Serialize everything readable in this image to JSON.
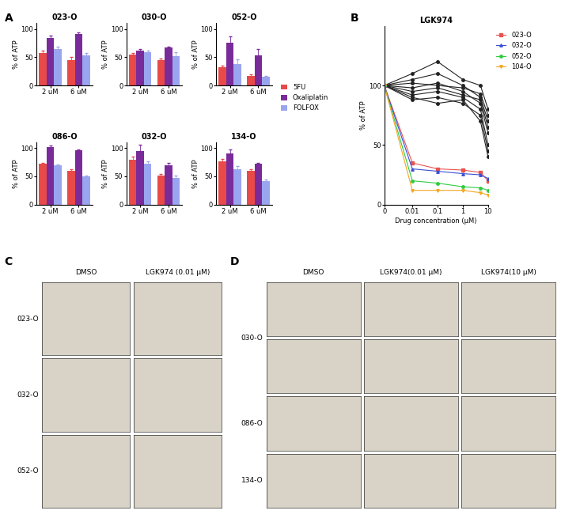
{
  "chart_data": [
    {
      "type": "bar",
      "title": "023-O",
      "y_label": "% of ATP",
      "categories": [
        "2 uM",
        "6 uM"
      ],
      "ylim": [
        0,
        110
      ],
      "yticks": [
        0,
        50,
        100
      ],
      "series": [
        {
          "name": "5FU",
          "color": "#e84a4a",
          "values": [
            57,
            45
          ],
          "errors": [
            5,
            6
          ]
        },
        {
          "name": "Oxaliplatin",
          "color": "#7a2b9a",
          "values": [
            84,
            91
          ],
          "errors": [
            4,
            3
          ]
        },
        {
          "name": "FOLFOX",
          "color": "#9aa5ef",
          "values": [
            65,
            53
          ],
          "errors": [
            4,
            4
          ]
        }
      ]
    },
    {
      "type": "bar",
      "title": "030-O",
      "y_label": "% of ATP",
      "categories": [
        "2 uM",
        "6 uM"
      ],
      "ylim": [
        0,
        110
      ],
      "yticks": [
        0,
        50,
        100
      ],
      "series": [
        {
          "name": "5FU",
          "color": "#e84a4a",
          "values": [
            55,
            45
          ],
          "errors": [
            3,
            2
          ]
        },
        {
          "name": "Oxaliplatin",
          "color": "#7a2b9a",
          "values": [
            61,
            67
          ],
          "errors": [
            4,
            2
          ]
        },
        {
          "name": "FOLFOX",
          "color": "#9aa5ef",
          "values": [
            59,
            52
          ],
          "errors": [
            3,
            7
          ]
        }
      ]
    },
    {
      "type": "bar",
      "title": "052-O",
      "y_label": "% of ATP",
      "categories": [
        "2 uM",
        "6 uM"
      ],
      "ylim": [
        0,
        110
      ],
      "yticks": [
        0,
        50,
        100
      ],
      "legend": "center left",
      "series": [
        {
          "name": "5FU",
          "color": "#e84a4a",
          "values": [
            32,
            17
          ],
          "errors": [
            3,
            3
          ]
        },
        {
          "name": "Oxaliplatin",
          "color": "#7a2b9a",
          "values": [
            75,
            53
          ],
          "errors": [
            12,
            11
          ]
        },
        {
          "name": "FOLFOX",
          "color": "#9aa5ef",
          "values": [
            38,
            15
          ],
          "errors": [
            8,
            2
          ]
        }
      ]
    },
    {
      "type": "bar",
      "title": "086-O",
      "y_label": "% of ATP",
      "categories": [
        "2 uM",
        "6 uM"
      ],
      "ylim": [
        0,
        110
      ],
      "yticks": [
        0,
        50,
        100
      ],
      "series": [
        {
          "name": "5FU",
          "color": "#e84a4a",
          "values": [
            72,
            60
          ],
          "errors": [
            2,
            2
          ]
        },
        {
          "name": "Oxaliplatin",
          "color": "#7a2b9a",
          "values": [
            102,
            96
          ],
          "errors": [
            2,
            2
          ]
        },
        {
          "name": "FOLFOX",
          "color": "#9aa5ef",
          "values": [
            69,
            50
          ],
          "errors": [
            2,
            2
          ]
        }
      ]
    },
    {
      "type": "bar",
      "title": "032-O",
      "y_label": "% of ATP",
      "categories": [
        "2 uM",
        "6 uM"
      ],
      "ylim": [
        0,
        110
      ],
      "yticks": [
        0,
        50,
        100
      ],
      "series": [
        {
          "name": "5FU",
          "color": "#e84a4a",
          "values": [
            80,
            52
          ],
          "errors": [
            5,
            2
          ]
        },
        {
          "name": "Oxaliplatin",
          "color": "#7a2b9a",
          "values": [
            95,
            70
          ],
          "errors": [
            11,
            4
          ]
        },
        {
          "name": "FOLFOX",
          "color": "#9aa5ef",
          "values": [
            72,
            47
          ],
          "errors": [
            4,
            4
          ]
        }
      ]
    },
    {
      "type": "bar",
      "title": "134-O",
      "y_label": "% of ATP",
      "categories": [
        "2 uM",
        "6 uM"
      ],
      "ylim": [
        0,
        110
      ],
      "yticks": [
        0,
        50,
        100
      ],
      "series": [
        {
          "name": "5FU",
          "color": "#e84a4a",
          "values": [
            77,
            60
          ],
          "errors": [
            4,
            3
          ]
        },
        {
          "name": "Oxaliplatin",
          "color": "#7a2b9a",
          "values": [
            90,
            72
          ],
          "errors": [
            7,
            2
          ]
        },
        {
          "name": "FOLFOX",
          "color": "#9aa5ef",
          "values": [
            62,
            42
          ],
          "errors": [
            6,
            3
          ]
        }
      ]
    },
    {
      "type": "line",
      "title": "LGK974",
      "x_label": "Drug concentration (μM)",
      "y_label": "% of ATP",
      "x": [
        0,
        0.01,
        0.1,
        1,
        5,
        10
      ],
      "log": "x",
      "xlim": [
        0,
        10
      ],
      "xticks": [
        0,
        0.01,
        0.1,
        1,
        10
      ],
      "ylim": [
        0,
        150
      ],
      "yticks": [
        0,
        50,
        100
      ],
      "legend": "upper left",
      "series": [
        {
          "color": "#222222",
          "marker": "o",
          "values": [
            100,
            98,
            102,
            95,
            85,
            60
          ]
        },
        {
          "color": "#222222",
          "marker": "o",
          "values": [
            100,
            105,
            110,
            100,
            90,
            70
          ]
        },
        {
          "color": "#222222",
          "marker": "o",
          "values": [
            100,
            92,
            95,
            90,
            80,
            50
          ]
        },
        {
          "color": "#222222",
          "marker": "o",
          "values": [
            100,
            88,
            90,
            85,
            75,
            45
          ]
        },
        {
          "color": "#222222",
          "marker": "o",
          "values": [
            100,
            110,
            120,
            105,
            100,
            80
          ]
        },
        {
          "color": "#222222",
          "marker": "o",
          "values": [
            100,
            95,
            98,
            92,
            88,
            65
          ]
        },
        {
          "color": "#222222",
          "marker": "o",
          "values": [
            100,
            102,
            100,
            98,
            93,
            75
          ]
        },
        {
          "color": "#222222",
          "marker": "o",
          "values": [
            100,
            90,
            85,
            88,
            70,
            40
          ]
        },
        {
          "name": "023-O",
          "color": "#e8534f",
          "marker": "square",
          "values": [
            100,
            35,
            30,
            29,
            27,
            20
          ]
        },
        {
          "name": "032-O",
          "color": "#3a4fd6",
          "marker": "triangle",
          "values": [
            100,
            30,
            28,
            26,
            25,
            22
          ]
        },
        {
          "name": "052-O",
          "color": "#2ecc40",
          "marker": "circle",
          "values": [
            100,
            20,
            18,
            15,
            14,
            12
          ]
        },
        {
          "name": "104-O",
          "color": "#f5a623",
          "marker": "triangle_down",
          "values": [
            100,
            12,
            12,
            12,
            10,
            8
          ]
        }
      ]
    }
  ],
  "panel_labels": [
    "A",
    "B",
    "C",
    "D"
  ],
  "image_panels": [
    {
      "columns": [
        "DMSO",
        "LGK974 (0.01 μM)"
      ],
      "rows": [
        {
          "label": "023-O",
          "image_rows": 1
        },
        {
          "label": "032-O",
          "image_rows": 1
        },
        {
          "label": "052-O",
          "image_rows": 1
        }
      ]
    },
    {
      "columns": [
        "DMSO",
        "LGK974(0.01 μM)",
        "LGK974(10 μM)"
      ],
      "rows": [
        {
          "label": "030-O",
          "image_rows": 2
        },
        {
          "label": "086-O",
          "image_rows": 1
        },
        {
          "label": "134-O",
          "image_rows": 1
        }
      ]
    }
  ]
}
